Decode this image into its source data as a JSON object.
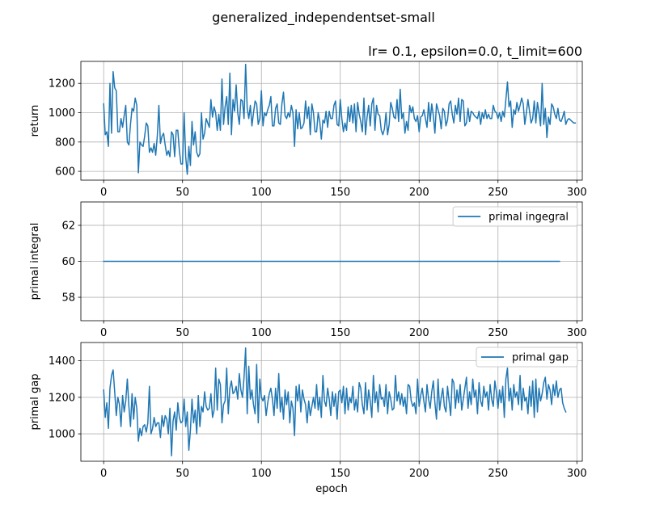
{
  "figure": {
    "suptitle": "generalized_independentset-small",
    "colors": {
      "line": "#1f77b4",
      "grid": "#b0b0b0",
      "axis": "#000000",
      "legend_border": "#cccccc"
    }
  },
  "chart_data": [
    {
      "type": "line",
      "title": "lr= 0.1, epsilon=0.0, t_limit=600",
      "xlabel": "",
      "ylabel": "return",
      "xlim": [
        -14.45,
        303.45
      ],
      "ylim": [
        540,
        1350
      ],
      "xticks": [
        0,
        50,
        100,
        150,
        200,
        250,
        300
      ],
      "xtick_labels": [
        "0",
        "50",
        "100",
        "150",
        "200",
        "250",
        "300"
      ],
      "yticks": [
        600,
        800,
        1000,
        1200
      ],
      "ytick_labels": [
        "600",
        "800",
        "1000",
        "1200"
      ],
      "grid": true,
      "legend": null,
      "series": [
        {
          "values": [
            1060,
            850,
            870,
            770,
            1200,
            860,
            1280,
            1170,
            1150,
            870,
            870,
            960,
            900,
            980,
            1050,
            800,
            780,
            920,
            1030,
            1010,
            1100,
            1050,
            590,
            800,
            780,
            770,
            840,
            930,
            910,
            730,
            760,
            730,
            790,
            710,
            840,
            1050,
            790,
            840,
            860,
            780,
            710,
            740,
            700,
            870,
            850,
            700,
            880,
            880,
            740,
            650,
            650,
            1000,
            700,
            580,
            770,
            640,
            940,
            780,
            870,
            730,
            700,
            720,
            1000,
            820,
            860,
            960,
            930,
            900,
            1090,
            970,
            1040,
            1000,
            880,
            990,
            880,
            1230,
            920,
            1040,
            1110,
            920,
            1270,
            850,
            1090,
            1010,
            1190,
            1000,
            920,
            1090,
            1080,
            960,
            1330,
            1030,
            960,
            1050,
            910,
            1000,
            1080,
            1060,
            920,
            960,
            1150,
            910,
            1000,
            980,
            1020,
            1050,
            1110,
            910,
            910,
            1030,
            1060,
            930,
            920,
            1060,
            1140,
            980,
            960,
            1000,
            970,
            1050,
            1000,
            770,
            1020,
            890,
            1000,
            890,
            900,
            930,
            1080,
            960,
            1040,
            850,
            1060,
            1000,
            870,
            870,
            1000,
            940,
            820,
            950,
            930,
            1010,
            900,
            1010,
            960,
            960,
            1050,
            1080,
            920,
            910,
            1090,
            960,
            870,
            930,
            880,
            1040,
            940,
            1050,
            930,
            1060,
            870,
            1070,
            990,
            940,
            870,
            1100,
            850,
            970,
            1050,
            910,
            1060,
            1100,
            880,
            1050,
            990,
            980,
            880,
            850,
            890,
            1000,
            850,
            920,
            1070,
            1030,
            970,
            960,
            1090,
            940,
            1160,
            960,
            1000,
            860,
            940,
            880,
            1050,
            1000,
            1040,
            960,
            940,
            980,
            870,
            970,
            980,
            1020,
            960,
            900,
            1070,
            940,
            1060,
            980,
            860,
            1060,
            1020,
            980,
            890,
            1030,
            1010,
            910,
            950,
            1060,
            1080,
            990,
            930,
            1050,
            990,
            1100,
            940,
            1090,
            1080,
            910,
            930,
            1030,
            940,
            1010,
            1000,
            980,
            970,
            960,
            1010,
            920,
            1000,
            960,
            1020,
            960,
            990,
            960,
            960,
            1050,
            1010,
            1000,
            960,
            1000,
            940,
            1010,
            970,
            1090,
            1210,
            1040,
            1080,
            900,
            1020,
            990,
            1070,
            1010,
            1050,
            1100,
            1060,
            920,
            1000,
            1090,
            1010,
            930,
            960,
            1080,
            930,
            1070,
            1000,
            910,
            1200,
            920,
            1030,
            830,
            970,
            920,
            1060,
            1040,
            990,
            960,
            1030,
            950,
            940,
            970,
            1010,
            920,
            950,
            960,
            950,
            940,
            930,
            930
          ]
        }
      ]
    },
    {
      "type": "line",
      "title": "",
      "xlabel": "",
      "ylabel": "primal integral",
      "xlim": [
        -14.45,
        303.45
      ],
      "ylim": [
        56.7,
        63.3
      ],
      "xticks": [
        0,
        50,
        100,
        150,
        200,
        250,
        300
      ],
      "xtick_labels": [
        "0",
        "50",
        "100",
        "150",
        "200",
        "250",
        "300"
      ],
      "yticks": [
        58,
        60,
        62
      ],
      "ytick_labels": [
        "58",
        "60",
        "62"
      ],
      "grid": true,
      "legend": "top-right",
      "series": [
        {
          "name": "primal ingegral",
          "constant": 60,
          "x_range": [
            0,
            289
          ]
        }
      ]
    },
    {
      "type": "line",
      "title": "",
      "xlabel": "epoch",
      "ylabel": "primal gap",
      "xlim": [
        -14.45,
        303.45
      ],
      "ylim": [
        850,
        1500
      ],
      "xticks": [
        0,
        50,
        100,
        150,
        200,
        250,
        300
      ],
      "xtick_labels": [
        "0",
        "50",
        "100",
        "150",
        "200",
        "250",
        "300"
      ],
      "yticks": [
        1000,
        1200,
        1400
      ],
      "ytick_labels": [
        "1000",
        "1200",
        "1400"
      ],
      "grid": true,
      "legend": "top-right",
      "series": [
        {
          "name": "primal gap",
          "values": [
            1240,
            1090,
            1170,
            1030,
            1250,
            1320,
            1350,
            1230,
            1100,
            1200,
            1160,
            1040,
            1210,
            1120,
            1180,
            1300,
            1150,
            1040,
            1220,
            1080,
            1200,
            1140,
            960,
            1030,
            990,
            1040,
            1050,
            1010,
            1060,
            1260,
            1000,
            1030,
            1090,
            1040,
            1060,
            1060,
            980,
            1100,
            1040,
            1100,
            1080,
            1000,
            1140,
            880,
            1070,
            1120,
            1020,
            1170,
            1090,
            1060,
            1070,
            1190,
            1040,
            1120,
            910,
            1020,
            1190,
            1060,
            1130,
            1000,
            1210,
            1040,
            1150,
            1120,
            1230,
            1150,
            1130,
            1140,
            1220,
            1090,
            1130,
            1360,
            1130,
            1300,
            1270,
            1060,
            1160,
            1180,
            1360,
            1110,
            1250,
            1290,
            1220,
            1230,
            1260,
            1190,
            1330,
            1240,
            1200,
            1310,
            1470,
            1110,
            1370,
            1190,
            1240,
            1160,
            1110,
            1380,
            1060,
            1300,
            1200,
            1180,
            1210,
            1100,
            1170,
            1220,
            1250,
            1190,
            1100,
            1250,
            1140,
            1330,
            1120,
            1200,
            1080,
            1240,
            1160,
            1230,
            1060,
            1180,
            1140,
            990,
            1260,
            1180,
            1270,
            1120,
            1240,
            1190,
            1160,
            1060,
            1180,
            1100,
            1150,
            1200,
            1140,
            1270,
            1130,
            1200,
            1090,
            1320,
            1180,
            1150,
            1250,
            1190,
            1100,
            1230,
            1150,
            1220,
            1080,
            1230,
            1240,
            1170,
            1260,
            1110,
            1250,
            1130,
            1200,
            1170,
            1260,
            1130,
            1190,
            1120,
            1280,
            1250,
            1160,
            1110,
            1280,
            1130,
            1240,
            1180,
            1090,
            1320,
            1170,
            1230,
            1120,
            1270,
            1190,
            1200,
            1150,
            1270,
            1110,
            1230,
            1190,
            1130,
            1140,
            1320,
            1180,
            1230,
            1160,
            1220,
            1150,
            1200,
            1110,
            1270,
            1260,
            1180,
            1150,
            1170,
            1110,
            1300,
            1150,
            1210,
            1250,
            1180,
            1120,
            1270,
            1190,
            1140,
            1230,
            1290,
            1170,
            1080,
            1300,
            1130,
            1200,
            1250,
            1150,
            1120,
            1260,
            1180,
            1100,
            1300,
            1280,
            1140,
            1240,
            1170,
            1270,
            1130,
            1190,
            1250,
            1310,
            1140,
            1230,
            1160,
            1300,
            1200,
            1240,
            1110,
            1280,
            1180,
            1150,
            1260,
            1200,
            1230,
            1130,
            1270,
            1190,
            1150,
            1290,
            1230,
            1140,
            1240,
            1170,
            1260,
            1090,
            1300,
            1360,
            1180,
            1250,
            1130,
            1270,
            1200,
            1230,
            1160,
            1320,
            1130,
            1250,
            1180,
            1200,
            1110,
            1260,
            1150,
            1290,
            1090,
            1300,
            1120,
            1250,
            1180,
            1220,
            1280,
            1310,
            1190,
            1270,
            1240,
            1160,
            1270,
            1210,
            1290,
            1200,
            1240,
            1250,
            1170,
            1140,
            1120
          ]
        }
      ]
    }
  ]
}
